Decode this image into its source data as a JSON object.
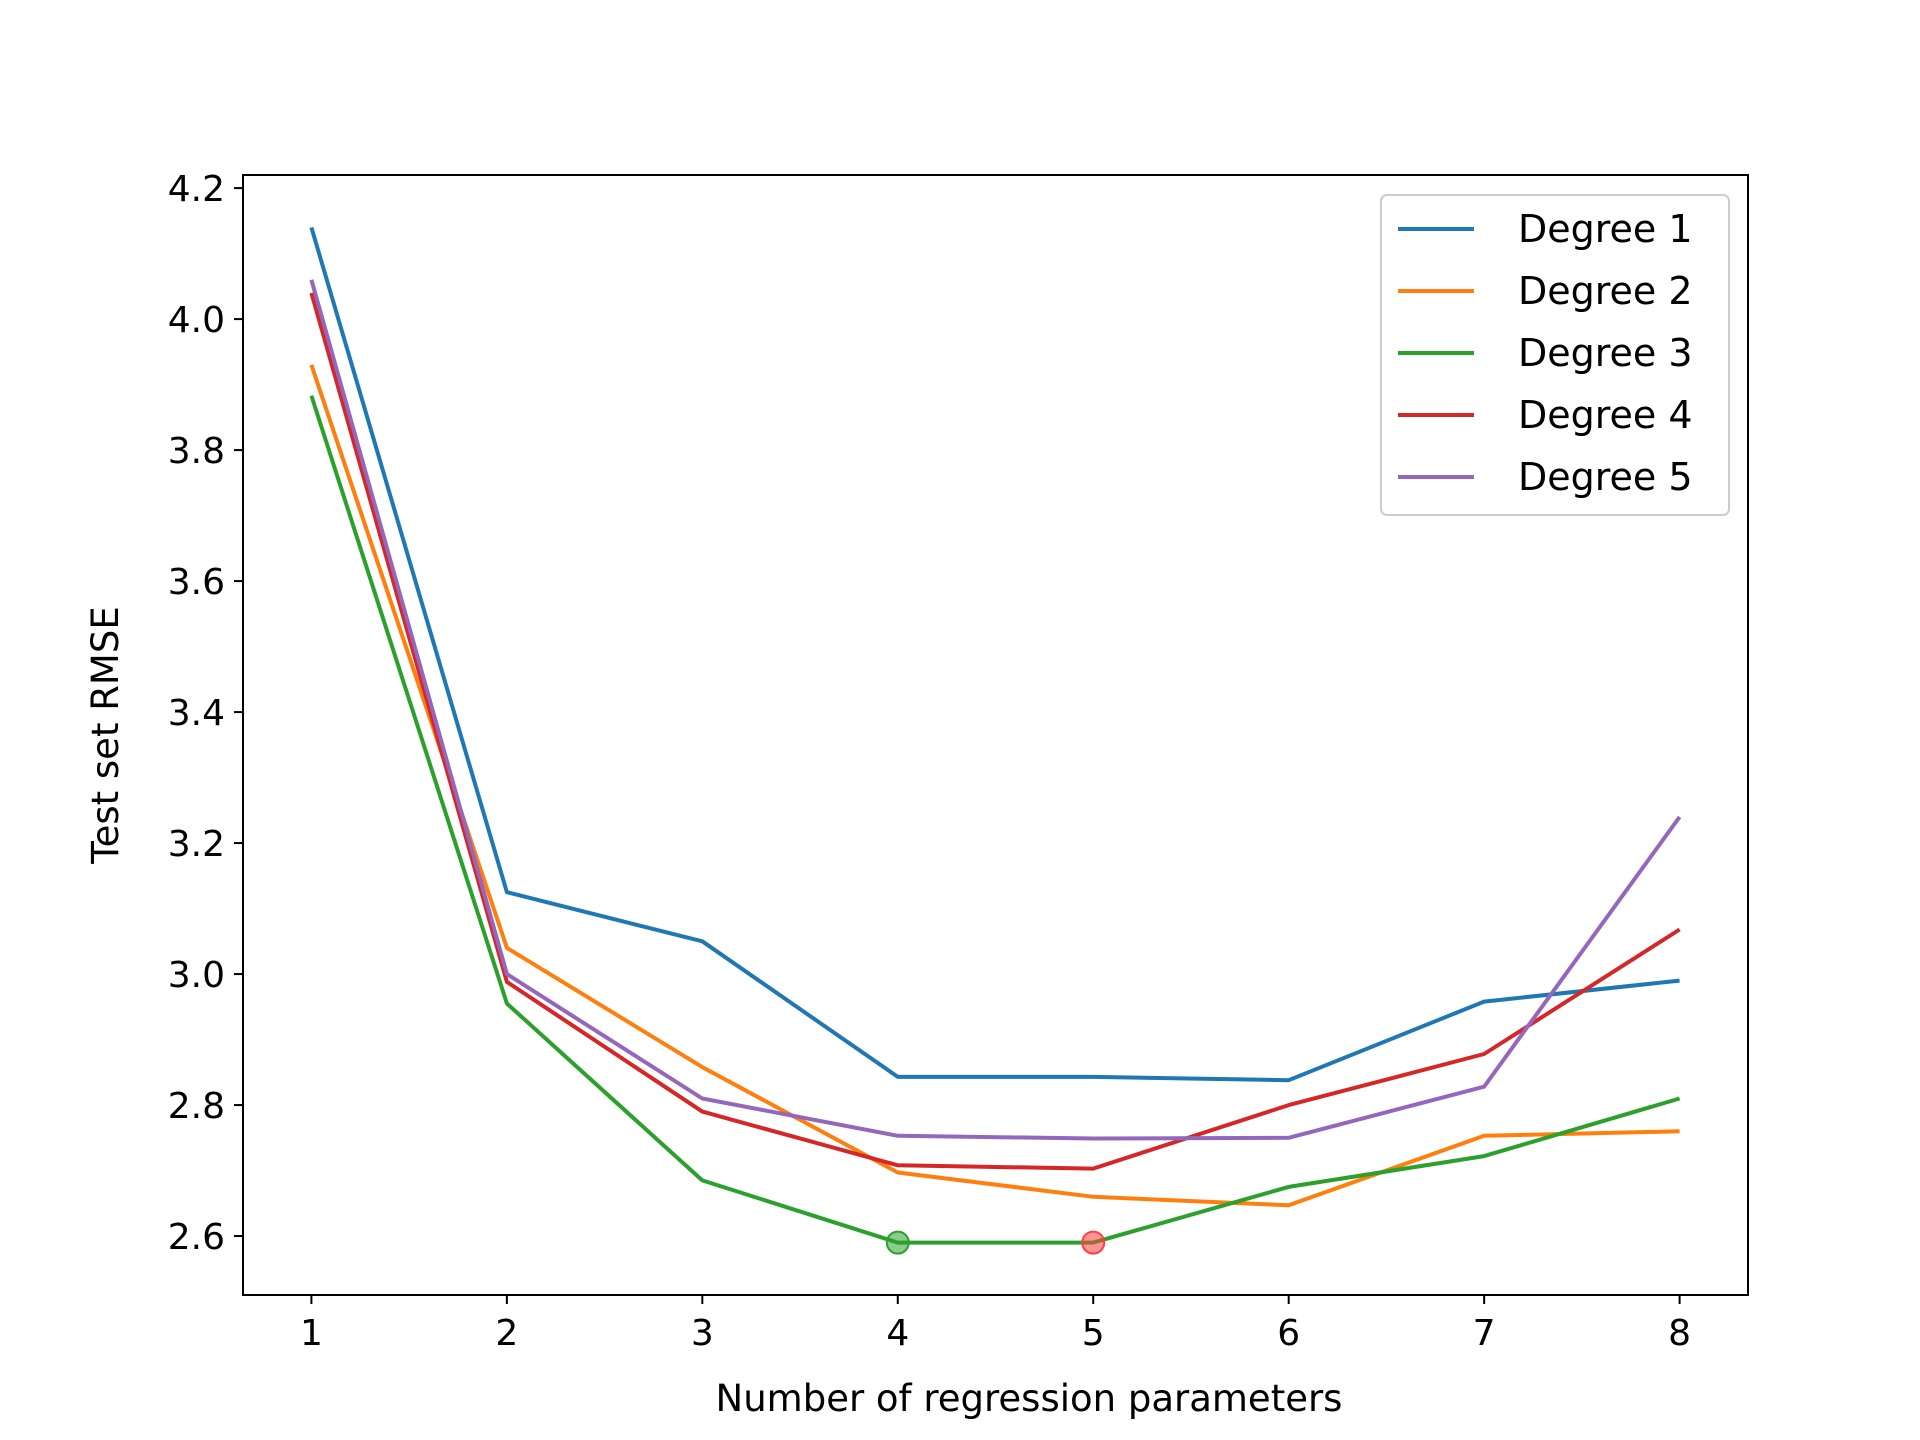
{
  "chart_data": {
    "type": "line",
    "title": "",
    "xlabel": "Number of regression parameters",
    "ylabel": "Test set RMSE",
    "x": [
      1,
      2,
      3,
      4,
      5,
      6,
      7,
      8
    ],
    "xlim": [
      0.65,
      8.35
    ],
    "ylim": [
      2.51,
      4.22
    ],
    "xticks": [
      1,
      2,
      3,
      4,
      5,
      6,
      7,
      8
    ],
    "yticks": [
      2.6,
      2.8,
      3.0,
      3.2,
      3.4,
      3.6,
      3.8,
      4.0,
      4.2
    ],
    "ytick_labels": [
      "2.6",
      "2.8",
      "3.0",
      "3.2",
      "3.4",
      "3.6",
      "3.8",
      "4.0",
      "4.2"
    ],
    "grid": false,
    "legend_position": "top-right",
    "series": [
      {
        "name": "Degree 1",
        "color": "#1f77b4",
        "values": [
          4.14,
          3.125,
          3.05,
          2.843,
          2.843,
          2.838,
          2.958,
          2.99
        ]
      },
      {
        "name": "Degree 2",
        "color": "#ff7f0e",
        "values": [
          3.93,
          3.04,
          2.858,
          2.697,
          2.66,
          2.647,
          2.753,
          2.76
        ]
      },
      {
        "name": "Degree 3",
        "color": "#2ca02c",
        "values": [
          3.883,
          2.955,
          2.685,
          2.59,
          2.59,
          2.675,
          2.722,
          2.81
        ]
      },
      {
        "name": "Degree 4",
        "color": "#d62728",
        "values": [
          4.04,
          2.988,
          2.79,
          2.708,
          2.703,
          2.8,
          2.878,
          3.068
        ]
      },
      {
        "name": "Degree 5",
        "color": "#9467bd",
        "values": [
          4.06,
          3.0,
          2.81,
          2.753,
          2.749,
          2.75,
          2.828,
          3.24
        ]
      }
    ],
    "highlighted_points": [
      {
        "x": 4,
        "y": 2.59,
        "color": "#2ca02c"
      },
      {
        "x": 5,
        "y": 2.59,
        "color": "#ff4040"
      }
    ]
  }
}
